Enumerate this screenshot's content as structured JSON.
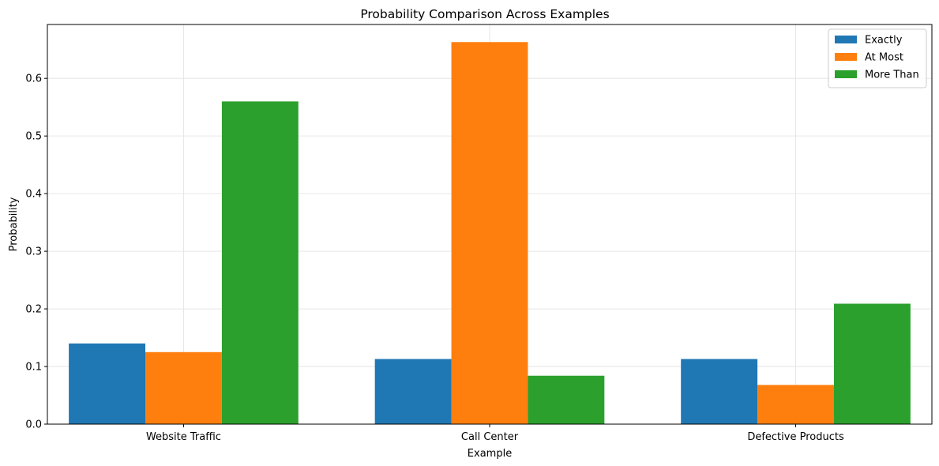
{
  "chart_data": {
    "type": "bar",
    "title": "Probability Comparison Across Examples",
    "xlabel": "Example",
    "ylabel": "Probability",
    "categories": [
      "Website Traffic",
      "Call Center",
      "Defective Products"
    ],
    "series": [
      {
        "name": "Exactly",
        "color": "#1f77b4",
        "values": [
          0.14,
          0.113,
          0.113
        ]
      },
      {
        "name": "At Most",
        "color": "#ff7f0e",
        "values": [
          0.125,
          0.663,
          0.068
        ]
      },
      {
        "name": "More Than",
        "color": "#2ca02c",
        "values": [
          0.56,
          0.084,
          0.209
        ]
      }
    ],
    "ylim": [
      0,
      0.6935
    ],
    "yticks": [
      "0.0",
      "0.1",
      "0.2",
      "0.3",
      "0.4",
      "0.5",
      "0.6"
    ],
    "grid": true,
    "legend_position": "top-right"
  }
}
